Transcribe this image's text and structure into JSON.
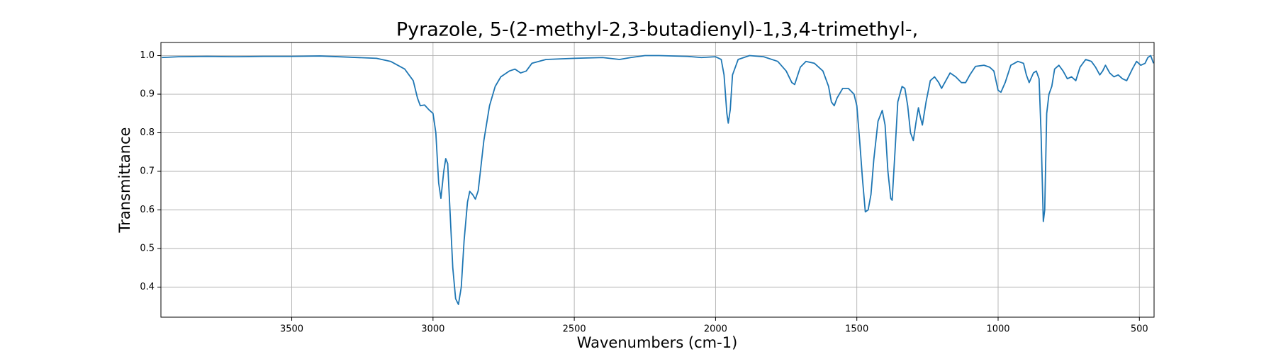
{
  "chart_data": {
    "type": "line",
    "title": "Pyrazole, 5-(2-methyl-2,3-butadienyl)-1,3,4-trimethyl-,",
    "x_label": "Wavenumbers (cm-1)",
    "y_label": "Transmittance",
    "color": "#1f77b4",
    "grid": true,
    "xlim": [
      3963,
      448
    ],
    "ylim": [
      0.322,
      1.034
    ],
    "xticks": [
      3500,
      3000,
      2500,
      2000,
      1500,
      1000,
      500
    ],
    "yticks": [
      0.4,
      0.5,
      0.6,
      0.7,
      0.8,
      0.9,
      {
        "value": 1,
        "label": "1.0"
      }
    ],
    "x": [
      3960,
      3900,
      3800,
      3700,
      3600,
      3500,
      3400,
      3300,
      3200,
      3150,
      3100,
      3070,
      3055,
      3045,
      3030,
      3015,
      3000,
      2990,
      2980,
      2972,
      2962,
      2955,
      2948,
      2940,
      2930,
      2920,
      2910,
      2900,
      2890,
      2878,
      2870,
      2860,
      2850,
      2840,
      2820,
      2800,
      2780,
      2760,
      2730,
      2710,
      2690,
      2670,
      2650,
      2600,
      2500,
      2400,
      2340,
      2300,
      2250,
      2200,
      2100,
      2050,
      2000,
      1980,
      1970,
      1960,
      1955,
      1948,
      1940,
      1920,
      1880,
      1830,
      1780,
      1750,
      1730,
      1720,
      1700,
      1680,
      1650,
      1620,
      1600,
      1590,
      1580,
      1570,
      1550,
      1530,
      1510,
      1500,
      1490,
      1480,
      1470,
      1460,
      1450,
      1440,
      1425,
      1410,
      1400,
      1390,
      1380,
      1375,
      1365,
      1355,
      1340,
      1330,
      1320,
      1310,
      1300,
      1290,
      1282,
      1275,
      1268,
      1255,
      1240,
      1225,
      1210,
      1200,
      1185,
      1170,
      1150,
      1130,
      1115,
      1100,
      1080,
      1050,
      1030,
      1015,
      1000,
      990,
      975,
      955,
      930,
      910,
      900,
      890,
      875,
      865,
      855,
      848,
      840,
      835,
      828,
      820,
      810,
      800,
      785,
      770,
      755,
      740,
      725,
      710,
      690,
      670,
      655,
      640,
      630,
      620,
      605,
      590,
      575,
      560,
      545,
      525,
      510,
      495,
      480,
      470,
      460,
      455,
      450
    ],
    "values": [
      0.995,
      0.997,
      0.998,
      0.997,
      0.998,
      0.998,
      0.999,
      0.996,
      0.993,
      0.985,
      0.965,
      0.935,
      0.89,
      0.87,
      0.872,
      0.86,
      0.85,
      0.8,
      0.67,
      0.63,
      0.7,
      0.733,
      0.72,
      0.6,
      0.45,
      0.37,
      0.355,
      0.4,
      0.52,
      0.62,
      0.648,
      0.64,
      0.628,
      0.65,
      0.78,
      0.87,
      0.92,
      0.945,
      0.96,
      0.965,
      0.955,
      0.96,
      0.98,
      0.99,
      0.993,
      0.995,
      0.99,
      0.995,
      1.0,
      1.0,
      0.998,
      0.995,
      0.997,
      0.99,
      0.95,
      0.85,
      0.825,
      0.86,
      0.95,
      0.99,
      1.0,
      0.997,
      0.985,
      0.96,
      0.93,
      0.925,
      0.97,
      0.985,
      0.98,
      0.96,
      0.92,
      0.88,
      0.87,
      0.89,
      0.915,
      0.915,
      0.9,
      0.87,
      0.78,
      0.68,
      0.595,
      0.6,
      0.64,
      0.73,
      0.83,
      0.858,
      0.82,
      0.7,
      0.63,
      0.625,
      0.75,
      0.88,
      0.92,
      0.915,
      0.87,
      0.8,
      0.78,
      0.83,
      0.865,
      0.84,
      0.82,
      0.88,
      0.935,
      0.945,
      0.93,
      0.915,
      0.935,
      0.955,
      0.945,
      0.93,
      0.93,
      0.95,
      0.972,
      0.975,
      0.97,
      0.96,
      0.91,
      0.905,
      0.93,
      0.975,
      0.985,
      0.98,
      0.95,
      0.93,
      0.955,
      0.96,
      0.94,
      0.8,
      0.57,
      0.6,
      0.85,
      0.9,
      0.92,
      0.965,
      0.975,
      0.96,
      0.94,
      0.945,
      0.935,
      0.97,
      0.99,
      0.985,
      0.97,
      0.95,
      0.96,
      0.975,
      0.955,
      0.945,
      0.95,
      0.94,
      0.935,
      0.965,
      0.985,
      0.975,
      0.98,
      0.995,
      1.0,
      0.99,
      0.98
    ]
  }
}
